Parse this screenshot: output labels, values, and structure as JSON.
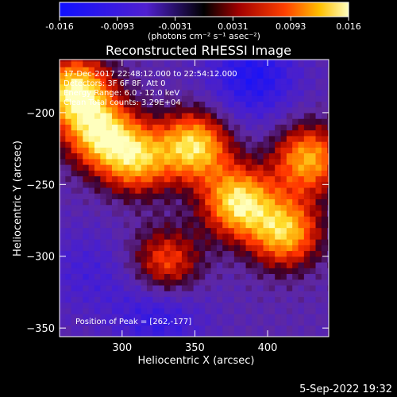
{
  "chart_data": {
    "type": "heatmap",
    "title": "Reconstructed RHESSI Image",
    "xlabel": "Heliocentric X (arcsec)",
    "ylabel": "Heliocentric Y (arcsec)",
    "xlim": [
      257,
      442
    ],
    "ylim": [
      -356,
      -163
    ],
    "xticks": [
      300,
      350,
      400
    ],
    "yticks": [
      -200,
      -250,
      -300,
      -350
    ],
    "colorbar": {
      "min": -0.016,
      "max": 0.016,
      "ticks": [
        "-0.016",
        "-0.0093",
        "-0.0031",
        "0.0031",
        "0.0093",
        "0.016"
      ],
      "label": "(photons cm⁻² s⁻¹ asec⁻²)"
    },
    "info_lines": [
      "17-Dec-2017 22:48:12.000 to 22:54:12.000",
      "Detectors: 3F 6F 8F, Att 0",
      "Energy Range: 6.0 - 12.0 keV",
      "Clean    Total counts: 3.29E+04"
    ],
    "peak_text": "Position of Peak = [262,-177]",
    "peak_position": [
      262,
      -177
    ],
    "sources": [
      {
        "x": 268,
        "y": -185,
        "value": 0.016
      },
      {
        "x": 285,
        "y": -215,
        "value": 0.0125
      },
      {
        "x": 310,
        "y": -232,
        "value": 0.0115
      },
      {
        "x": 350,
        "y": -223,
        "value": 0.0145
      },
      {
        "x": 380,
        "y": -262,
        "value": 0.015
      },
      {
        "x": 412,
        "y": -283,
        "value": 0.013
      },
      {
        "x": 428,
        "y": -232,
        "value": 0.012
      },
      {
        "x": 330,
        "y": -305,
        "value": 0.0085
      }
    ],
    "negative_regions": [
      {
        "x": 390,
        "y": -175,
        "value": -0.013
      },
      {
        "x": 325,
        "y": -340,
        "value": -0.011
      },
      {
        "x": 275,
        "y": -310,
        "value": -0.008
      }
    ]
  },
  "timestamp": "5-Sep-2022 19:32"
}
